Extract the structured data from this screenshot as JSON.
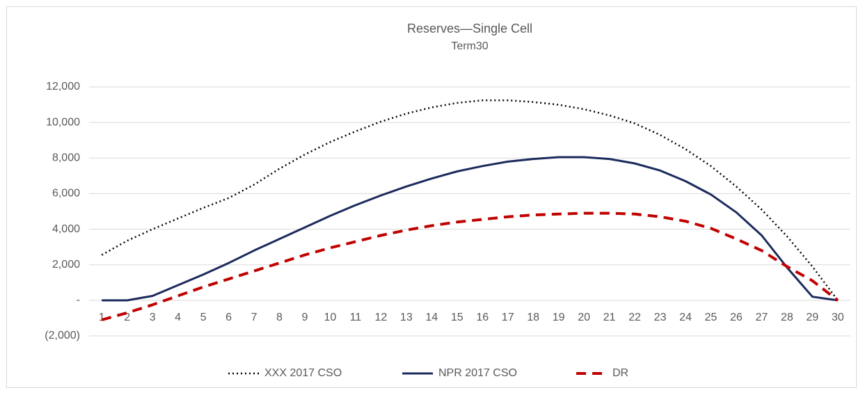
{
  "chart_data": {
    "type": "line",
    "title": "Reserves—Single Cell",
    "subtitle": "Term30",
    "categories": [
      "1",
      "2",
      "3",
      "4",
      "5",
      "6",
      "7",
      "8",
      "9",
      "10",
      "11",
      "12",
      "13",
      "14",
      "15",
      "16",
      "17",
      "18",
      "19",
      "20",
      "21",
      "22",
      "23",
      "24",
      "25",
      "26",
      "27",
      "28",
      "29",
      "30"
    ],
    "series": [
      {
        "name": "XXX 2017 CSO",
        "color": "#000000",
        "dash": "dotted",
        "values": [
          2550,
          3350,
          4000,
          4600,
          5200,
          5750,
          6500,
          7400,
          8200,
          8900,
          9500,
          10050,
          10500,
          10850,
          11100,
          11250,
          11250,
          11150,
          11000,
          10750,
          10400,
          9950,
          9300,
          8500,
          7550,
          6400,
          5100,
          3600,
          1900,
          0
        ]
      },
      {
        "name": "NPR 2017 CSO",
        "color": "#1b2a5c",
        "dash": "solid",
        "values": [
          0,
          0,
          250,
          850,
          1450,
          2100,
          2800,
          3450,
          4100,
          4750,
          5350,
          5900,
          6400,
          6850,
          7250,
          7550,
          7800,
          7950,
          8050,
          8050,
          7950,
          7700,
          7300,
          6700,
          5950,
          4950,
          3650,
          1850,
          200,
          0
        ]
      },
      {
        "name": "DR",
        "color": "#c00000",
        "dash": "dashed",
        "values": [
          -1100,
          -700,
          -250,
          250,
          750,
          1200,
          1650,
          2100,
          2550,
          2950,
          3300,
          3650,
          3950,
          4200,
          4400,
          4550,
          4700,
          4800,
          4850,
          4900,
          4900,
          4850,
          4700,
          4450,
          4050,
          3450,
          2800,
          1900,
          1100,
          0
        ]
      }
    ],
    "ylim": [
      -2000,
      12000
    ],
    "yticks": [
      {
        "value": -2000,
        "label": "(2,000)"
      },
      {
        "value": 0,
        "label": "-"
      },
      {
        "value": 2000,
        "label": "2,000"
      },
      {
        "value": 4000,
        "label": "4,000"
      },
      {
        "value": 6000,
        "label": "6,000"
      },
      {
        "value": 8000,
        "label": "8,000"
      },
      {
        "value": 10000,
        "label": "10,000"
      },
      {
        "value": 12000,
        "label": "12,000"
      }
    ],
    "grid": true,
    "legend": "bottom"
  }
}
